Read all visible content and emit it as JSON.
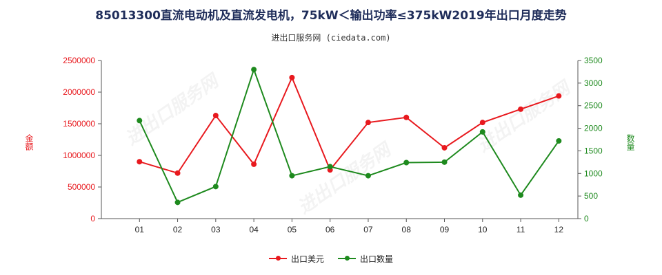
{
  "title": "85013300直流电动机及直流发电机，75kW＜输出功率≤375kW2019年出口月度走势",
  "subtitle": "进出口服务网 (ciedata.com)",
  "watermark": "进出口服务网",
  "colors": {
    "series_usd": "#e8191e",
    "series_qty": "#1e8a1e"
  },
  "chart_data": {
    "type": "line",
    "categories": [
      "01",
      "02",
      "03",
      "04",
      "05",
      "06",
      "07",
      "08",
      "09",
      "10",
      "11",
      "12"
    ],
    "left_axis": {
      "label": "金额",
      "ylim": [
        0,
        2500000
      ],
      "ticks": [
        "0",
        "500000",
        "1000000",
        "1500000",
        "2000000",
        "2500000"
      ],
      "tick_values": [
        0,
        500000,
        1000000,
        1500000,
        2000000,
        2500000
      ]
    },
    "right_axis": {
      "label": "数量",
      "ylim": [
        0,
        3500
      ],
      "ticks": [
        "0",
        "500",
        "1000",
        "1500",
        "2000",
        "2500",
        "3000",
        "3500"
      ],
      "tick_values": [
        0,
        500,
        1000,
        1500,
        2000,
        2500,
        3000,
        3500
      ]
    },
    "series": [
      {
        "name": "出口美元",
        "axis": "left",
        "color": "#e8191e",
        "values": [
          900000,
          720000,
          1630000,
          860000,
          2230000,
          770000,
          1520000,
          1600000,
          1120000,
          1520000,
          1730000,
          1940000
        ]
      },
      {
        "name": "出口数量",
        "axis": "right",
        "color": "#1e8a1e",
        "values": [
          2170,
          360,
          710,
          3300,
          950,
          1150,
          950,
          1240,
          1250,
          1920,
          520,
          1720
        ]
      }
    ]
  }
}
